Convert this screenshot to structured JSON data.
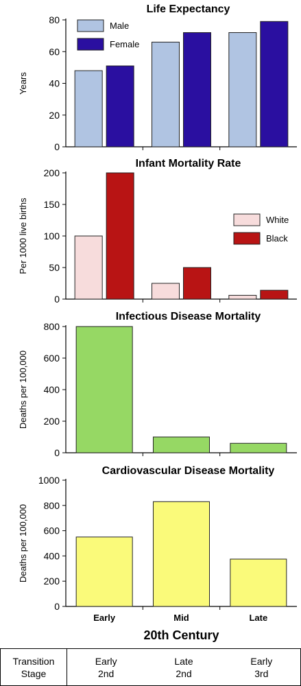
{
  "chart_data": [
    {
      "type": "bar",
      "title": "Life Expectancy",
      "ylabel": "Years",
      "ylim": [
        0,
        80
      ],
      "yticks": [
        0,
        20,
        40,
        60,
        80
      ],
      "categories": [
        "Early",
        "Mid",
        "Late"
      ],
      "series": [
        {
          "name": "Male",
          "values": [
            48,
            66,
            72
          ],
          "color": "#b0c4e2"
        },
        {
          "name": "Female",
          "values": [
            51,
            72,
            79
          ],
          "color": "#2a0fa0"
        }
      ],
      "legend": "top-left"
    },
    {
      "type": "bar",
      "title": "Infant Mortality Rate",
      "ylabel": "Per 1000 live births",
      "ylim": [
        0,
        200
      ],
      "yticks": [
        0,
        50,
        100,
        150,
        200
      ],
      "categories": [
        "Early",
        "Mid",
        "Late"
      ],
      "series": [
        {
          "name": "White",
          "values": [
            100,
            25,
            6
          ],
          "color": "#f7dcdc"
        },
        {
          "name": "Black",
          "values": [
            200,
            50,
            14
          ],
          "color": "#b81414"
        }
      ],
      "legend": "right"
    },
    {
      "type": "bar",
      "title": "Infectious Disease Mortality",
      "ylabel": "Deaths per 100,000",
      "ylim": [
        0,
        800
      ],
      "yticks": [
        0,
        200,
        400,
        600,
        800
      ],
      "categories": [
        "Early",
        "Mid",
        "Late"
      ],
      "series": [
        {
          "values": [
            800,
            100,
            60
          ],
          "color": "#96d864"
        }
      ]
    },
    {
      "type": "bar",
      "title": "Cardiovascular Disease Mortality",
      "ylabel": "Deaths per 100,000",
      "ylim": [
        0,
        1000
      ],
      "yticks": [
        0,
        200,
        400,
        600,
        800,
        1000
      ],
      "categories": [
        "Early",
        "Mid",
        "Late"
      ],
      "series": [
        {
          "values": [
            550,
            830,
            375
          ],
          "color": "#fafa7a"
        }
      ]
    }
  ],
  "x_axis": {
    "categories": [
      "Early",
      "Mid",
      "Late"
    ],
    "title": "20th Century"
  },
  "stage_table": {
    "header_line1": "Transition",
    "header_line2": "Stage",
    "cols": [
      {
        "line1": "Early",
        "line2": "2nd"
      },
      {
        "line1": "Late",
        "line2": "2nd"
      },
      {
        "line1": "Early",
        "line2": "3rd"
      }
    ]
  }
}
